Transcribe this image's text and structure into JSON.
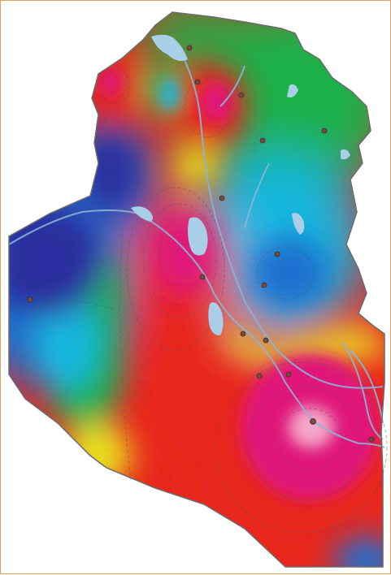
{
  "map": {
    "type": "interpolated-surface-map",
    "legend": null,
    "colors": {
      "frame_border": "#e8a060",
      "background": "#ffffff",
      "outline": "#6b6b6b",
      "water": "#a9cfe8",
      "rivers": "#8ab4d8",
      "contours": "#555555",
      "stations": "#7a4a3a"
    },
    "color_scale": [
      "#2b2f9e",
      "#1e6fd0",
      "#19b7e0",
      "#1fb04a",
      "#e8e21a",
      "#f08a1e",
      "#e8281e",
      "#e0157a",
      "#f4a6c8"
    ]
  }
}
